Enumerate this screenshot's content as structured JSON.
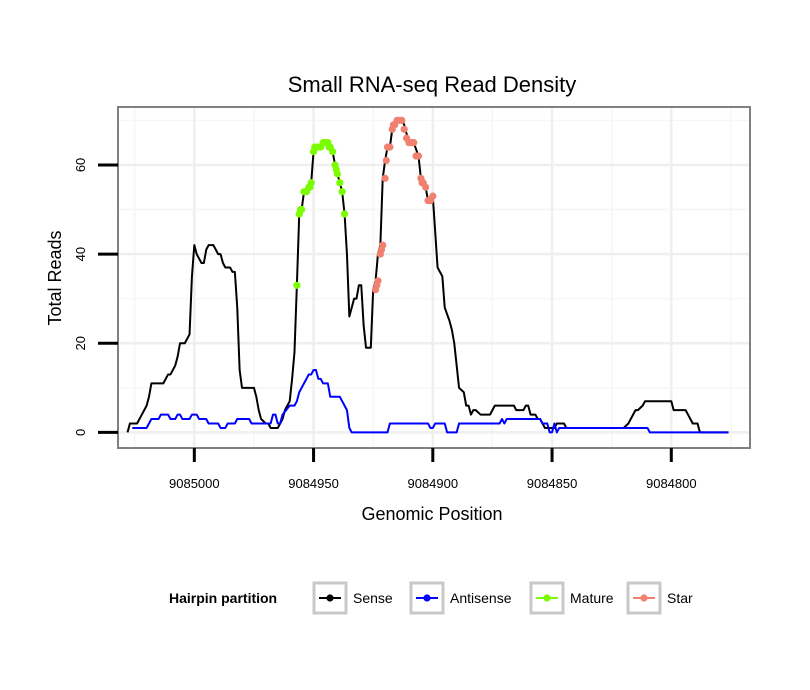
{
  "chart_data": {
    "type": "line",
    "title": "Small RNA-seq Read Density",
    "xlabel": "Genomic Position",
    "ylabel": "Total Reads",
    "xlim": [
      9085032,
      9084767
    ],
    "ylim": [
      -3.5,
      73
    ],
    "x_reversed": true,
    "grid": true,
    "x_ticks": [
      9085000,
      9084950,
      9084900,
      9084850,
      9084800
    ],
    "x_tick_labels": [
      "9085000",
      "9084950",
      "9084900",
      "9084850",
      "9084800"
    ],
    "y_ticks": [
      0,
      20,
      40,
      60
    ],
    "y_tick_labels": [
      "0",
      "20",
      "40",
      "60"
    ],
    "legend": {
      "title": "Hairpin partition",
      "position": "bottom",
      "entries": [
        "Sense",
        "Antisense",
        "Mature",
        "Star"
      ]
    },
    "series": [
      {
        "name": "Sense",
        "color": "#000000",
        "marker": "line",
        "points": [
          [
            9085028,
            0
          ],
          [
            9085027,
            2
          ],
          [
            9085024,
            2
          ],
          [
            9085022,
            4
          ],
          [
            9085021,
            5
          ],
          [
            9085020,
            6
          ],
          [
            9085019,
            8
          ],
          [
            9085018,
            11
          ],
          [
            9085013,
            11
          ],
          [
            9085012,
            12
          ],
          [
            9085011,
            13
          ],
          [
            9085010,
            13
          ],
          [
            9085008,
            15
          ],
          [
            9085007,
            17
          ],
          [
            9085006,
            20
          ],
          [
            9085004,
            20
          ],
          [
            9085003,
            21
          ],
          [
            9085002,
            22
          ],
          [
            9085001,
            35
          ],
          [
            9085000,
            42
          ],
          [
            9084999,
            40
          ],
          [
            9084998,
            39
          ],
          [
            9084997,
            38
          ],
          [
            9084996,
            38
          ],
          [
            9084995,
            41
          ],
          [
            9084994,
            42
          ],
          [
            9084992,
            42
          ],
          [
            9084990,
            40
          ],
          [
            9084989,
            40
          ],
          [
            9084988,
            38
          ],
          [
            9084987,
            37
          ],
          [
            9084985,
            37
          ],
          [
            9084984,
            36
          ],
          [
            9084983,
            36
          ],
          [
            9084982,
            28
          ],
          [
            9084981,
            14
          ],
          [
            9084980,
            10
          ],
          [
            9084975,
            10
          ],
          [
            9084974,
            8
          ],
          [
            9084973,
            5
          ],
          [
            9084972,
            3
          ],
          [
            9084970,
            2
          ],
          [
            9084969,
            2
          ],
          [
            9084968,
            1
          ],
          [
            9084965,
            1
          ],
          [
            9084964,
            2
          ],
          [
            9084963,
            3
          ],
          [
            9084962,
            5
          ],
          [
            9084960,
            7
          ],
          [
            9084959,
            12
          ],
          [
            9084958,
            18
          ],
          [
            9084957,
            33
          ],
          [
            9084956,
            49
          ],
          [
            9084955,
            50
          ],
          [
            9084954,
            54
          ],
          [
            9084952,
            55
          ],
          [
            9084951,
            56
          ],
          [
            9084950,
            63
          ],
          [
            9084949,
            64
          ],
          [
            9084948,
            64
          ],
          [
            9084947,
            64
          ],
          [
            9084946,
            65
          ],
          [
            9084945,
            65
          ],
          [
            9084944,
            65
          ],
          [
            9084943,
            64
          ],
          [
            9084942,
            63
          ],
          [
            9084941,
            60
          ],
          [
            9084940,
            58
          ],
          [
            9084939,
            56
          ],
          [
            9084938,
            54
          ],
          [
            9084937,
            49
          ],
          [
            9084936,
            40
          ],
          [
            9084935,
            26
          ],
          [
            9084934,
            28
          ],
          [
            9084933,
            30
          ],
          [
            9084932,
            30
          ],
          [
            9084931,
            33
          ],
          [
            9084930,
            33
          ],
          [
            9084929,
            24
          ],
          [
            9084928,
            19
          ],
          [
            9084926,
            19
          ],
          [
            9084925,
            32
          ],
          [
            9084924,
            34
          ],
          [
            9084923,
            40
          ],
          [
            9084922,
            42
          ],
          [
            9084921,
            57
          ],
          [
            9084920,
            61
          ],
          [
            9084919,
            64
          ],
          [
            9084918,
            64
          ],
          [
            9084917,
            68
          ],
          [
            9084916,
            69
          ],
          [
            9084915,
            70
          ],
          [
            9084914,
            70
          ],
          [
            9084913,
            70
          ],
          [
            9084912,
            69
          ],
          [
            9084911,
            67
          ],
          [
            9084910,
            65
          ],
          [
            9084909,
            65
          ],
          [
            9084908,
            65
          ],
          [
            9084906,
            62
          ],
          [
            9084905,
            57
          ],
          [
            9084904,
            56
          ],
          [
            9084903,
            55
          ],
          [
            9084902,
            52
          ],
          [
            9084901,
            52
          ],
          [
            9084900,
            53
          ],
          [
            9084898,
            37
          ],
          [
            9084897,
            36
          ],
          [
            9084896,
            35
          ],
          [
            9084895,
            28
          ],
          [
            9084893,
            25
          ],
          [
            9084892,
            23
          ],
          [
            9084891,
            20
          ],
          [
            9084890,
            15
          ],
          [
            9084889,
            10
          ],
          [
            9084887,
            9
          ],
          [
            9084886,
            6
          ],
          [
            9084885,
            6
          ],
          [
            9084884,
            4
          ],
          [
            9084883,
            5
          ],
          [
            9084882,
            5
          ],
          [
            9084880,
            4
          ],
          [
            9084879,
            4
          ],
          [
            9084878,
            4
          ],
          [
            9084877,
            4
          ],
          [
            9084876,
            4
          ],
          [
            9084875,
            5
          ],
          [
            9084874,
            6
          ],
          [
            9084866,
            6
          ],
          [
            9084865,
            5
          ],
          [
            9084862,
            5
          ],
          [
            9084861,
            6
          ],
          [
            9084860,
            6
          ],
          [
            9084859,
            4
          ],
          [
            9084857,
            4
          ],
          [
            9084856,
            3
          ],
          [
            9084855,
            3
          ],
          [
            9084854,
            2
          ],
          [
            9084853,
            1
          ],
          [
            9084849,
            1
          ],
          [
            9084848,
            2
          ],
          [
            9084845,
            2
          ],
          [
            9084844,
            1
          ],
          [
            9084820,
            1
          ],
          [
            9084818,
            2
          ],
          [
            9084817,
            3
          ],
          [
            9084815,
            5
          ],
          [
            9084814,
            5
          ],
          [
            9084812,
            6
          ],
          [
            9084811,
            7
          ],
          [
            9084810,
            7
          ],
          [
            9084800,
            7
          ],
          [
            9084799,
            5
          ],
          [
            9084794,
            5
          ],
          [
            9084793,
            4
          ],
          [
            9084791,
            2
          ],
          [
            9084789,
            2
          ],
          [
            9084788,
            0
          ],
          [
            9084776,
            0
          ]
        ]
      },
      {
        "name": "Antisense",
        "color": "#0000ff",
        "marker": "line",
        "points": [
          [
            9085026,
            1
          ],
          [
            9085020,
            1
          ],
          [
            9085019,
            2
          ],
          [
            9085018,
            3
          ],
          [
            9085015,
            3
          ],
          [
            9085014,
            4
          ],
          [
            9085011,
            4
          ],
          [
            9085010,
            3
          ],
          [
            9085008,
            3
          ],
          [
            9085007,
            4
          ],
          [
            9085006,
            4
          ],
          [
            9085005,
            3
          ],
          [
            9085002,
            3
          ],
          [
            9085001,
            4
          ],
          [
            9084999,
            4
          ],
          [
            9084998,
            3
          ],
          [
            9084995,
            3
          ],
          [
            9084994,
            2
          ],
          [
            9084990,
            2
          ],
          [
            9084989,
            1
          ],
          [
            9084987,
            1
          ],
          [
            9084986,
            2
          ],
          [
            9084983,
            2
          ],
          [
            9084982,
            3
          ],
          [
            9084977,
            3
          ],
          [
            9084976,
            2
          ],
          [
            9084968,
            2
          ],
          [
            9084967,
            4
          ],
          [
            9084966,
            4
          ],
          [
            9084965,
            2
          ],
          [
            9084964,
            2
          ],
          [
            9084963,
            4
          ],
          [
            9084960,
            6
          ],
          [
            9084958,
            6
          ],
          [
            9084957,
            7
          ],
          [
            9084956,
            9
          ],
          [
            9084955,
            10
          ],
          [
            9084954,
            11
          ],
          [
            9084953,
            12
          ],
          [
            9084952,
            13
          ],
          [
            9084951,
            13
          ],
          [
            9084950,
            14
          ],
          [
            9084949,
            14
          ],
          [
            9084948,
            12
          ],
          [
            9084947,
            12
          ],
          [
            9084946,
            11
          ],
          [
            9084944,
            11
          ],
          [
            9084943,
            8
          ],
          [
            9084941,
            8
          ],
          [
            9084939,
            8
          ],
          [
            9084938,
            7
          ],
          [
            9084937,
            6
          ],
          [
            9084936,
            5
          ],
          [
            9084935,
            1
          ],
          [
            9084934,
            0
          ],
          [
            9084919,
            0
          ],
          [
            9084918,
            2
          ],
          [
            9084902,
            2
          ],
          [
            9084901,
            1
          ],
          [
            9084900,
            1
          ],
          [
            9084899,
            2
          ],
          [
            9084895,
            2
          ],
          [
            9084894,
            0
          ],
          [
            9084890,
            0
          ],
          [
            9084889,
            2
          ],
          [
            9084872,
            2
          ],
          [
            9084871,
            3
          ],
          [
            9084870,
            2
          ],
          [
            9084869,
            3
          ],
          [
            9084868,
            3
          ],
          [
            9084855,
            3
          ],
          [
            9084854,
            2
          ],
          [
            9084853,
            2
          ],
          [
            9084852,
            2
          ],
          [
            9084851,
            0
          ],
          [
            9084850,
            0
          ],
          [
            9084849,
            2
          ],
          [
            9084848,
            0
          ],
          [
            9084847,
            1
          ],
          [
            9084810,
            1
          ],
          [
            9084809,
            0
          ],
          [
            9084776,
            0
          ]
        ]
      },
      {
        "name": "Mature",
        "color": "#7cfc00",
        "marker": "point",
        "points": [
          [
            9084957,
            33
          ],
          [
            9084956,
            49
          ],
          [
            9084955.5,
            50
          ],
          [
            9084955,
            50
          ],
          [
            9084954,
            54
          ],
          [
            9084953,
            54
          ],
          [
            9084952,
            55
          ],
          [
            9084951.5,
            55
          ],
          [
            9084951,
            56
          ],
          [
            9084950,
            63
          ],
          [
            9084949.5,
            64
          ],
          [
            9084949,
            64
          ],
          [
            9084948,
            64
          ],
          [
            9084947,
            64
          ],
          [
            9084946,
            65
          ],
          [
            9084945.5,
            65
          ],
          [
            9084945,
            65
          ],
          [
            9084944,
            65
          ],
          [
            9084943.5,
            64
          ],
          [
            9084943,
            64
          ],
          [
            9084942,
            63
          ],
          [
            9084941,
            60
          ],
          [
            9084940.5,
            59
          ],
          [
            9084940,
            58
          ],
          [
            9084939,
            56
          ],
          [
            9084938,
            54
          ],
          [
            9084937,
            49
          ]
        ]
      },
      {
        "name": "Star",
        "color": "#f08070",
        "marker": "point",
        "points": [
          [
            9084924,
            32
          ],
          [
            9084923.5,
            33
          ],
          [
            9084923,
            34
          ],
          [
            9084922,
            40
          ],
          [
            9084921.5,
            41
          ],
          [
            9084921,
            42
          ],
          [
            9084920,
            57
          ],
          [
            9084919.5,
            61
          ],
          [
            9084919,
            64
          ],
          [
            9084918,
            64
          ],
          [
            9084917,
            68
          ],
          [
            9084916.5,
            69
          ],
          [
            9084916,
            69
          ],
          [
            9084915,
            70
          ],
          [
            9084914,
            70
          ],
          [
            9084913,
            70
          ],
          [
            9084912,
            68
          ],
          [
            9084911,
            66
          ],
          [
            9084910,
            65
          ],
          [
            9084909,
            65
          ],
          [
            9084908,
            65
          ],
          [
            9084907,
            62
          ],
          [
            9084906,
            62
          ],
          [
            9084905,
            57
          ],
          [
            9084904.5,
            56
          ],
          [
            9084904,
            56
          ],
          [
            9084903,
            55
          ],
          [
            9084902,
            52
          ],
          [
            9084901,
            52
          ],
          [
            9084900,
            53
          ]
        ]
      }
    ]
  }
}
